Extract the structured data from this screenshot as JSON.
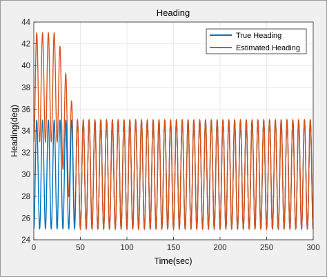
{
  "chart_data": {
    "type": "line",
    "title": "Heading",
    "xlabel": "Time(sec)",
    "ylabel": "Heading(deg)",
    "xlim": [
      0,
      300
    ],
    "ylim": [
      24,
      44
    ],
    "xticks": [
      0,
      50,
      100,
      150,
      200,
      250,
      300
    ],
    "yticks": [
      24,
      26,
      28,
      30,
      32,
      34,
      36,
      38,
      40,
      42,
      44
    ],
    "grid": true,
    "legend_position": "top-right",
    "series": [
      {
        "name": "True Heading",
        "color": "#0072BD",
        "model": "sinusoid",
        "mean": 30,
        "amplitude": 5,
        "period_sec": 6.25,
        "x_range": [
          0,
          300
        ]
      },
      {
        "name": "Estimated Heading",
        "color": "#D95319",
        "model": "sinusoid_decaying_amplitude",
        "mean_at_start": 38,
        "amplitude_at_start": 5,
        "mean_final": 30,
        "amplitude_final": 5,
        "period_sec": 6.25,
        "x_range": [
          0,
          300
        ],
        "notes_points": [
          [
            0,
            33
          ],
          [
            5,
            43
          ],
          [
            10,
            33
          ],
          [
            15,
            43
          ],
          [
            22,
            43
          ],
          [
            28,
            33
          ],
          [
            35,
            36.5
          ],
          [
            40,
            26
          ],
          [
            45,
            35.5
          ],
          [
            50,
            25
          ],
          [
            55,
            35
          ],
          [
            60,
            25
          ]
        ]
      }
    ]
  }
}
